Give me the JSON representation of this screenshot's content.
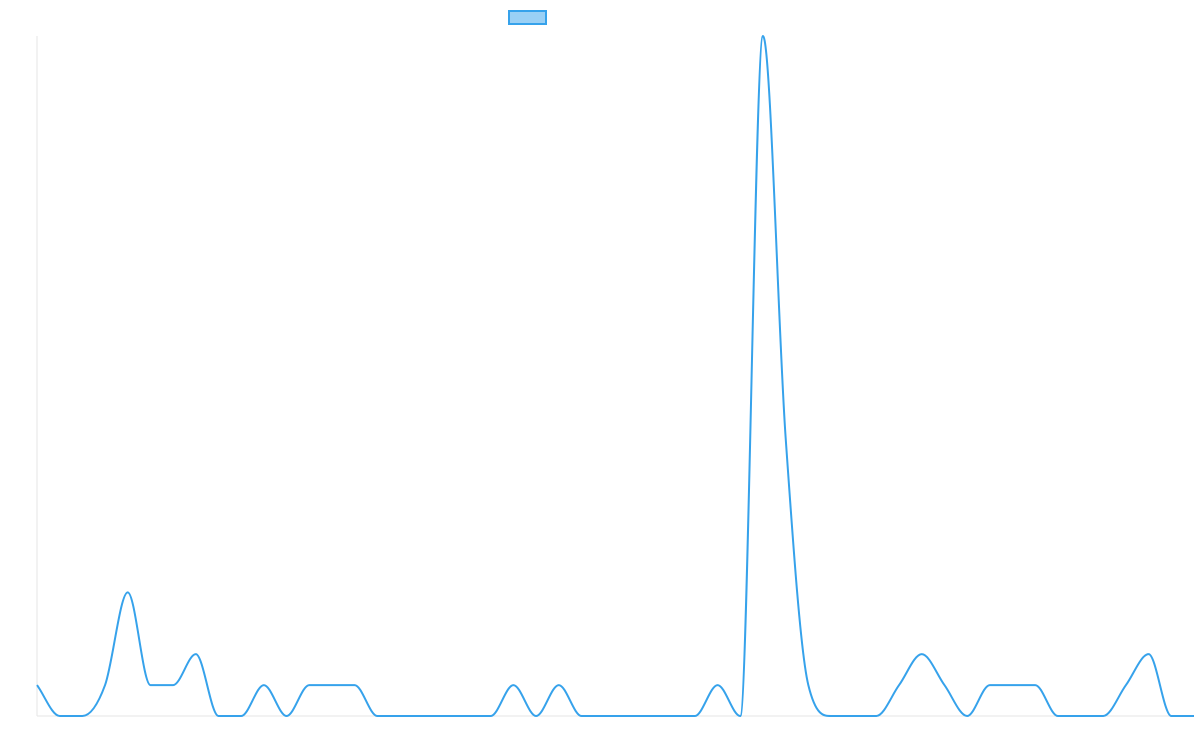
{
  "chart_data": {
    "type": "line",
    "title": "",
    "xlabel": "",
    "ylabel": "",
    "legend": "top",
    "grid": false,
    "ylim": [
      0,
      22
    ],
    "x": [
      0,
      1,
      2,
      3,
      4,
      5,
      6,
      7,
      8,
      9,
      10,
      11,
      12,
      13,
      14,
      15,
      16,
      17,
      18,
      19,
      20,
      21,
      22,
      23,
      24,
      25,
      26,
      27,
      28,
      29,
      30,
      31,
      32,
      33,
      34,
      35,
      36,
      37,
      38,
      39,
      40,
      41,
      42,
      43,
      44,
      45,
      46,
      47,
      48,
      49,
      50,
      51
    ],
    "series": [
      {
        "color": "#36a2eb",
        "values": [
          1,
          0,
          0,
          1,
          4,
          1,
          1,
          2,
          0,
          0,
          1,
          0,
          1,
          1,
          1,
          0,
          0,
          0,
          0,
          0,
          0,
          1,
          0,
          1,
          0,
          0,
          0,
          0,
          0,
          0,
          1,
          0,
          22,
          9,
          1,
          0,
          0,
          0,
          1,
          2,
          1,
          0,
          1,
          1,
          1,
          0,
          0,
          0,
          1,
          2,
          0,
          0
        ]
      }
    ]
  }
}
